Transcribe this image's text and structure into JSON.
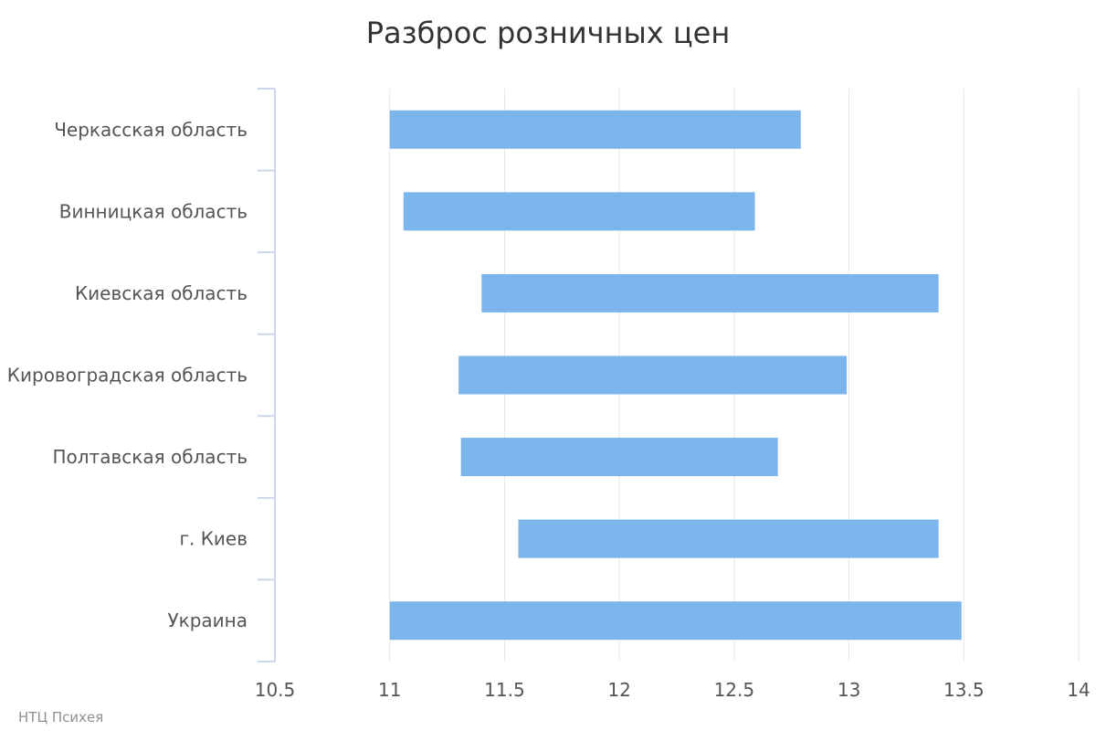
{
  "credit": "НТЦ Психея",
  "colors": {
    "bar": "#7cb5ec",
    "grid": "#e6e6e6",
    "axis": "#ccd6eb"
  },
  "chart_data": {
    "type": "bar",
    "orientation": "horizontal",
    "title": "Разброс розничных цен",
    "xlabel": "",
    "ylabel": "",
    "categories": [
      "Черкасская область",
      "Винницкая область",
      "Киевская область",
      "Кировоградская область",
      "Полтавская область",
      "г. Киев",
      "Украина"
    ],
    "series": [
      {
        "ranges": [
          [
            11.0,
            12.79
          ],
          [
            11.06,
            12.59
          ],
          [
            11.4,
            13.39
          ],
          [
            11.3,
            12.99
          ],
          [
            11.31,
            12.69
          ],
          [
            11.56,
            13.39
          ],
          [
            11.0,
            13.49
          ]
        ]
      }
    ],
    "xlim": [
      10.5,
      14
    ],
    "xticks": [
      "10.5",
      "11",
      "11.5",
      "12",
      "12.5",
      "13",
      "13.5",
      "14"
    ],
    "grid": true,
    "legend": "none"
  }
}
